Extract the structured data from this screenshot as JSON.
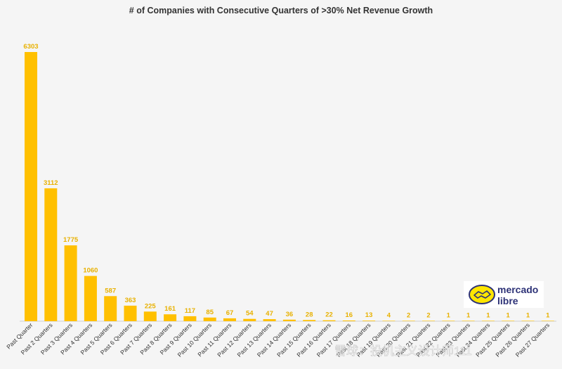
{
  "chart_data": {
    "type": "bar",
    "title": "# of Companies with Consecutive Quarters of >30% Net Revenue Growth",
    "xlabel": "",
    "ylabel": "",
    "ylim": [
      0,
      6500
    ],
    "grid": false,
    "categories": [
      "Past Quarter",
      "Past 2 Quarters",
      "Past 3 Quarters",
      "Past 4 Quarters",
      "Past 5 Quarters",
      "Past 6 Quarters",
      "Past 7 Quarters",
      "Past 8 Quarters",
      "Past 9 Quarters",
      "Past 10 Quarters",
      "Past 11 Quarters",
      "Past 12 Quarters",
      "Past 13 Quarters",
      "Past 14 Quarters",
      "Past 15 Quarters",
      "Past 16 Quarters",
      "Past 17 Quarters",
      "Past 18 Quarters",
      "Past 19 Quarters",
      "Past 20 Quarters",
      "Past 21 Quarters",
      "Past 22 Quarters",
      "Past 23 Quarters",
      "Past 24 Quarters",
      "Past 25 Quarters",
      "Past 26 Quarters",
      "Past 27 Quarters"
    ],
    "values": [
      6303,
      3112,
      1775,
      1060,
      587,
      363,
      225,
      161,
      117,
      85,
      67,
      54,
      47,
      36,
      28,
      22,
      16,
      13,
      4,
      2,
      2,
      1,
      1,
      1,
      1,
      1,
      1
    ],
    "bar_color": "#ffc000",
    "label_color": "#e8b100"
  },
  "logo": {
    "line1": "mercado",
    "line2": "libre",
    "icon": "handshake-icon",
    "oval_color": "#ffe600",
    "text_color": "#2d3277"
  },
  "watermark": {
    "text": "雪球：投机主义设计师111"
  }
}
